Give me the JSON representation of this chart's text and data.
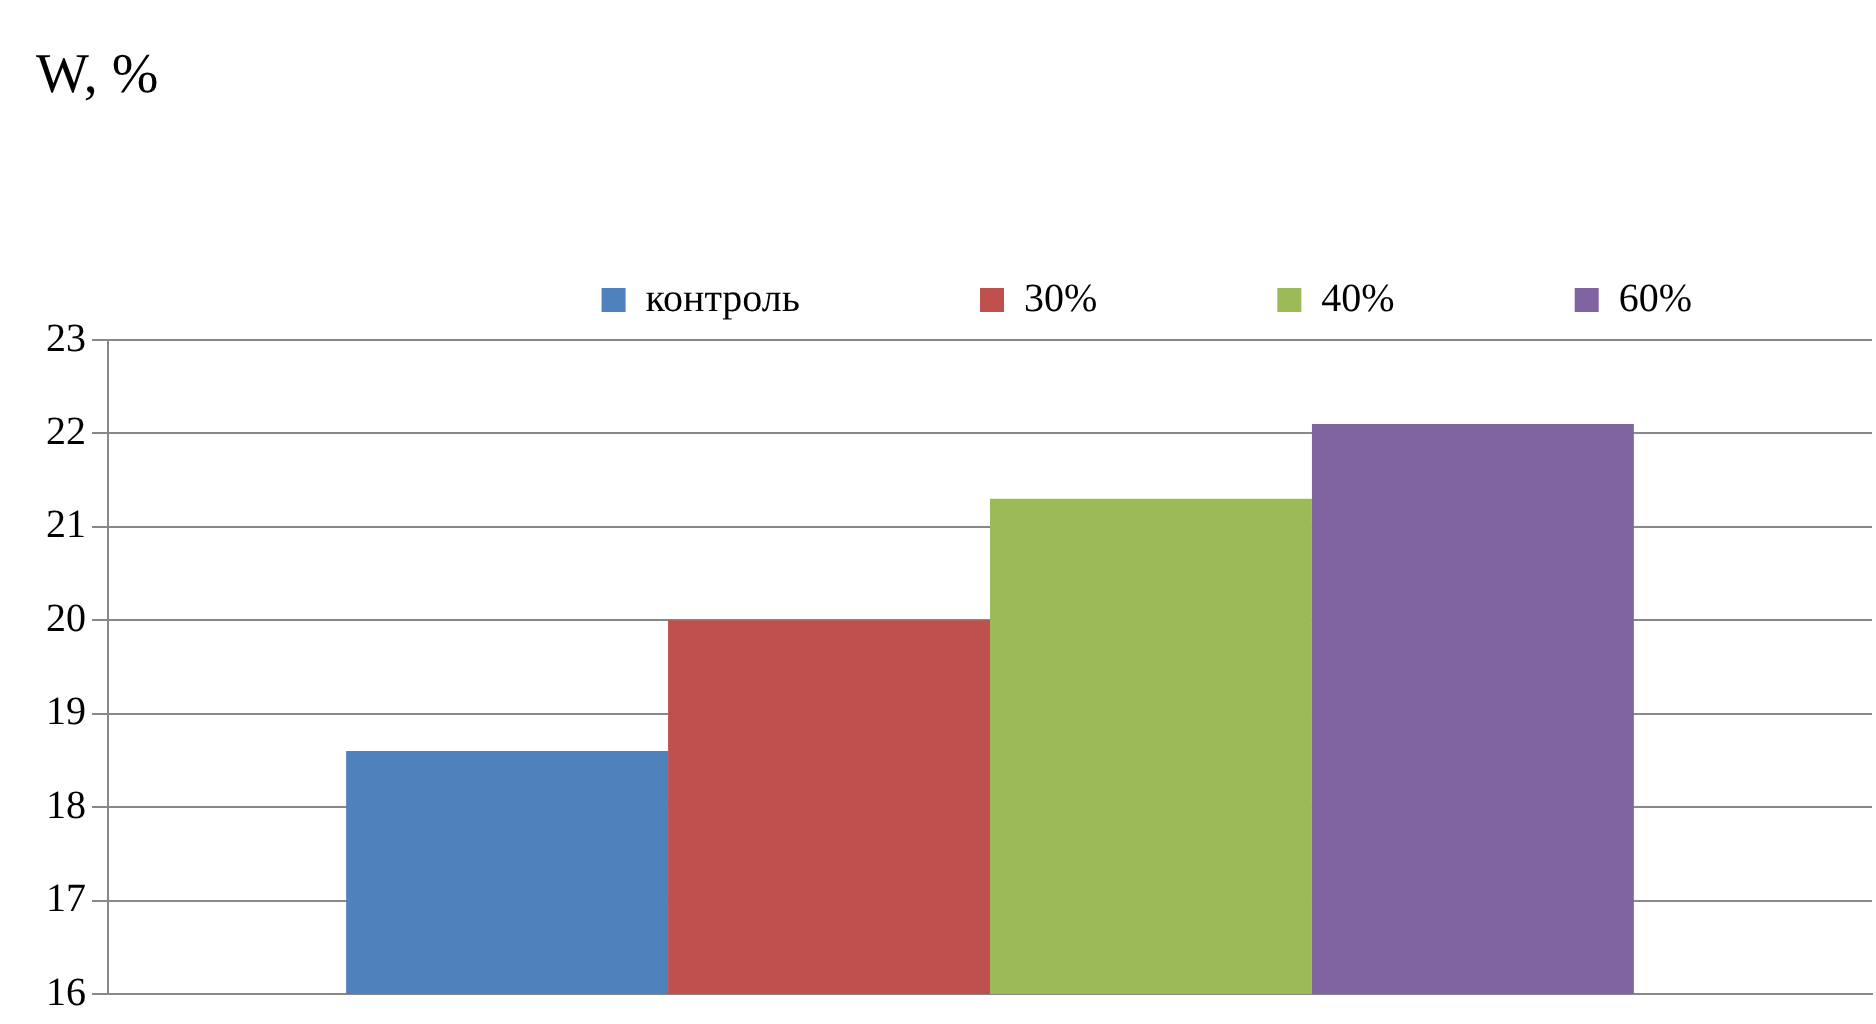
{
  "chart_data": {
    "type": "bar",
    "ylabel": "W, %",
    "categories": [
      null
    ],
    "series": [
      {
        "name": "контроль",
        "color": "#4f81bd",
        "values": [
          18.6
        ]
      },
      {
        "name": "30%",
        "color": "#c0504d",
        "values": [
          20.0
        ]
      },
      {
        "name": "40%",
        "color": "#9bbb59",
        "values": [
          21.3
        ]
      },
      {
        "name": "60%",
        "color": "#8064a2",
        "values": [
          22.1
        ]
      }
    ],
    "ylim": [
      16,
      23
    ],
    "yticks": [
      16,
      17,
      18,
      19,
      20,
      21,
      22,
      23
    ],
    "grid": "y",
    "legend": "top",
    "tick_labels": "y"
  }
}
